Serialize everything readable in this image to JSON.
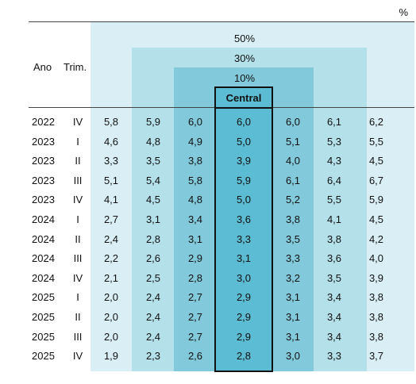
{
  "unit": "%",
  "header": {
    "year": "Ano",
    "quarter": "Trim.",
    "band_50": "50%",
    "band_30": "30%",
    "band_10": "10%",
    "central": "Central"
  },
  "rows": [
    {
      "year": "2022",
      "q": "IV",
      "values": [
        "5,8",
        "5,9",
        "6,0",
        "6,0",
        "6,0",
        "6,1",
        "6,2"
      ]
    },
    {
      "year": "2023",
      "q": "I",
      "values": [
        "4,6",
        "4,8",
        "4,9",
        "5,0",
        "5,1",
        "5,3",
        "5,5"
      ]
    },
    {
      "year": "2023",
      "q": "II",
      "values": [
        "3,3",
        "3,5",
        "3,8",
        "3,9",
        "4,0",
        "4,3",
        "4,5"
      ]
    },
    {
      "year": "2023",
      "q": "III",
      "values": [
        "5,1",
        "5,4",
        "5,8",
        "5,9",
        "6,1",
        "6,4",
        "6,7"
      ]
    },
    {
      "year": "2023",
      "q": "IV",
      "values": [
        "4,1",
        "4,5",
        "4,8",
        "5,0",
        "5,2",
        "5,5",
        "5,9"
      ]
    },
    {
      "year": "2024",
      "q": "I",
      "values": [
        "2,7",
        "3,1",
        "3,4",
        "3,6",
        "3,8",
        "4,1",
        "4,5"
      ]
    },
    {
      "year": "2024",
      "q": "II",
      "values": [
        "2,4",
        "2,8",
        "3,1",
        "3,3",
        "3,5",
        "3,8",
        "4,2"
      ]
    },
    {
      "year": "2024",
      "q": "III",
      "values": [
        "2,2",
        "2,6",
        "2,9",
        "3,1",
        "3,3",
        "3,6",
        "4,0"
      ]
    },
    {
      "year": "2024",
      "q": "IV",
      "values": [
        "2,1",
        "2,5",
        "2,8",
        "3,0",
        "3,2",
        "3,5",
        "3,9"
      ]
    },
    {
      "year": "2025",
      "q": "I",
      "values": [
        "2,0",
        "2,4",
        "2,7",
        "2,9",
        "3,1",
        "3,4",
        "3,8"
      ]
    },
    {
      "year": "2025",
      "q": "II",
      "values": [
        "2,0",
        "2,4",
        "2,7",
        "2,9",
        "3,1",
        "3,4",
        "3,8"
      ]
    },
    {
      "year": "2025",
      "q": "III",
      "values": [
        "2,0",
        "2,4",
        "2,7",
        "2,9",
        "3,1",
        "3,4",
        "3,8"
      ]
    },
    {
      "year": "2025",
      "q": "IV",
      "values": [
        "1,9",
        "2,3",
        "2,6",
        "2,8",
        "3,0",
        "3,3",
        "3,7"
      ]
    }
  ]
}
